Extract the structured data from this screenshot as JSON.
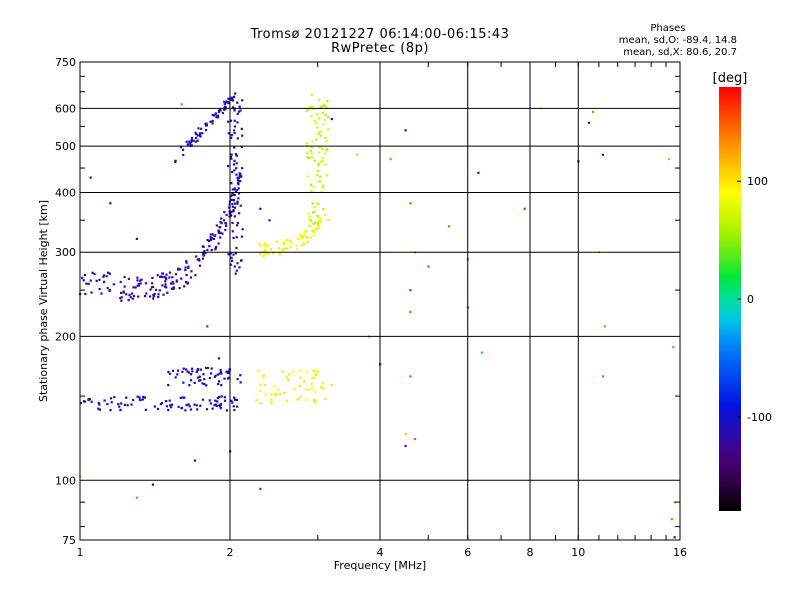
{
  "chart_data": {
    "type": "scatter",
    "title": "Tromsø 20121227 06:14:00-06:15:43",
    "subtitle": "RwPretec (8p)",
    "xlabel": "Frequency [MHz]",
    "ylabel": "Stationary phase Virtual Height [km]",
    "xscale": "log",
    "yscale": "log",
    "xlim": [
      1,
      16
    ],
    "ylim": [
      75,
      750
    ],
    "xticks": [
      1,
      2,
      4,
      6,
      8,
      10,
      16
    ],
    "xtick_labels": [
      "1",
      "2",
      "4",
      "6",
      "8",
      "10",
      "16"
    ],
    "yticks": [
      75,
      100,
      200,
      300,
      400,
      500,
      600,
      750
    ],
    "ytick_labels": [
      "75",
      "100",
      "200",
      "300",
      "400",
      "500",
      "600",
      "750"
    ],
    "grid": true,
    "stats": {
      "header": "Phases",
      "line_o": "mean, sd,O: -89.4, 14.8",
      "line_x": "mean, sd,X:  80.6, 20.7"
    },
    "colorbar": {
      "label": "[deg]",
      "range": [
        -180,
        180
      ],
      "ticks": [
        100,
        0,
        -100
      ],
      "tick_labels": [
        "100",
        "0",
        "-100"
      ]
    },
    "clusters": [
      {
        "name": "O-trace F upper",
        "f": [
          1.55,
          2.05
        ],
        "h": [
          470,
          640
        ],
        "phase": -110,
        "n": 70
      },
      {
        "name": "O-trace F lower curve",
        "f": [
          1.2,
          2.1
        ],
        "h": [
          250,
          420
        ],
        "phase": -115,
        "n": 180
      },
      {
        "name": "O-trace F tail",
        "f": [
          1.0,
          1.2
        ],
        "h": [
          245,
          275
        ],
        "phase": -105,
        "n": 25
      },
      {
        "name": "O-trace F vertical",
        "f": [
          1.98,
          2.12
        ],
        "h": [
          270,
          640
        ],
        "phase": -112,
        "n": 80
      },
      {
        "name": "O-trace E band 1",
        "f": [
          1.0,
          2.1
        ],
        "h": [
          140,
          150
        ],
        "phase": -105,
        "n": 90
      },
      {
        "name": "O-trace E band 2",
        "f": [
          1.5,
          2.1
        ],
        "h": [
          158,
          172
        ],
        "phase": -110,
        "n": 60
      },
      {
        "name": "X-trace F curve",
        "f": [
          2.25,
          3.05
        ],
        "h": [
          295,
          340
        ],
        "phase": 90,
        "n": 70
      },
      {
        "name": "X-trace F vertical",
        "f": [
          2.85,
          3.15
        ],
        "h": [
          340,
          650
        ],
        "phase": 70,
        "n": 90
      },
      {
        "name": "X-trace E",
        "f": [
          2.25,
          3.2
        ],
        "h": [
          145,
          170
        ],
        "phase": 85,
        "n": 55
      }
    ],
    "scattered": [
      [
        1.6,
        612,
        140
      ],
      [
        4.5,
        540,
        -100
      ],
      [
        4.2,
        470,
        140
      ],
      [
        6.3,
        440,
        -110
      ],
      [
        4.6,
        380,
        150
      ],
      [
        5.5,
        340,
        150
      ],
      [
        7.8,
        370,
        170
      ],
      [
        4.7,
        300,
        130
      ],
      [
        5.0,
        280,
        160
      ],
      [
        6.0,
        290,
        150
      ],
      [
        4.6,
        250,
        170
      ],
      [
        6.0,
        230,
        160
      ],
      [
        4.6,
        225,
        150
      ],
      [
        3.8,
        200,
        130
      ],
      [
        6.4,
        185,
        20
      ],
      [
        4.0,
        175,
        -100
      ],
      [
        4.6,
        165,
        150
      ],
      [
        4.5,
        125,
        110
      ],
      [
        4.5,
        118,
        -110
      ],
      [
        4.7,
        122,
        150
      ],
      [
        1.0,
        102,
        110
      ],
      [
        1.3,
        92,
        20
      ],
      [
        1.4,
        98,
        -100
      ],
      [
        2.3,
        96,
        -60
      ],
      [
        8.4,
        600,
        90
      ],
      [
        10.5,
        560,
        -110
      ],
      [
        10.7,
        590,
        140
      ],
      [
        11.2,
        480,
        -110
      ],
      [
        10.0,
        465,
        -110
      ],
      [
        11.0,
        300,
        110
      ],
      [
        11.3,
        210,
        140
      ],
      [
        11.2,
        165,
        150
      ],
      [
        15.2,
        470,
        40
      ],
      [
        15.5,
        190,
        140
      ],
      [
        15.6,
        90,
        140
      ],
      [
        15.6,
        76,
        -110
      ],
      [
        15.4,
        83,
        140
      ],
      [
        3.2,
        570,
        -110
      ],
      [
        3.6,
        480,
        110
      ],
      [
        1.05,
        430,
        -100
      ],
      [
        1.15,
        380,
        -100
      ],
      [
        1.3,
        320,
        -100
      ],
      [
        1.8,
        210,
        -60
      ],
      [
        1.9,
        180,
        -120
      ],
      [
        2.3,
        370,
        -110
      ],
      [
        2.4,
        350,
        -100
      ],
      [
        1.7,
        110,
        -100
      ],
      [
        2.0,
        115,
        -100
      ]
    ]
  }
}
